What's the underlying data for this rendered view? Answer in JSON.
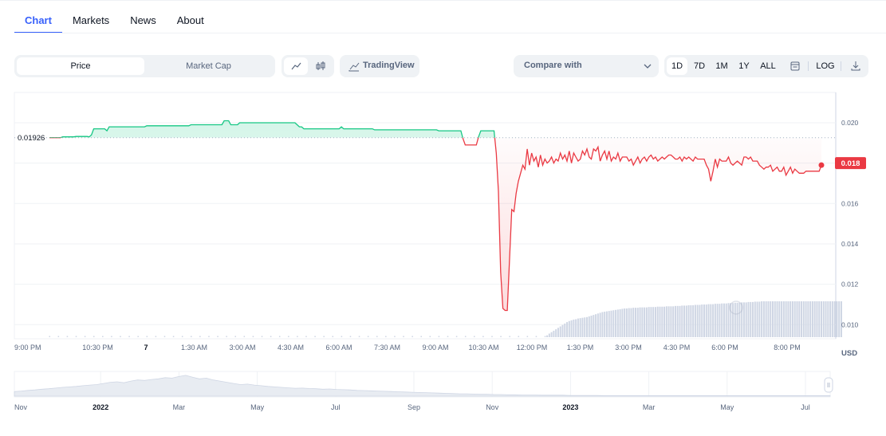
{
  "tabs": [
    {
      "label": "Chart",
      "active": true
    },
    {
      "label": "Markets",
      "active": false
    },
    {
      "label": "News",
      "active": false
    },
    {
      "label": "About",
      "active": false
    }
  ],
  "toolbar": {
    "metric_tabs": [
      {
        "label": "Price",
        "active": true
      },
      {
        "label": "Market Cap",
        "active": false
      }
    ],
    "chart_type_icons": [
      "line-chart-icon",
      "candlestick-icon"
    ],
    "tradingview_label": "TradingView",
    "compare_label": "Compare with",
    "ranges": [
      {
        "label": "1D",
        "active": true
      },
      {
        "label": "7D",
        "active": false
      },
      {
        "label": "1M",
        "active": false
      },
      {
        "label": "1Y",
        "active": false
      },
      {
        "label": "ALL",
        "active": false
      }
    ],
    "log_label": "LOG"
  },
  "colors": {
    "accent": "#3861fb",
    "up": "#16c784",
    "down": "#ea3943",
    "volume": "#cfd6e4",
    "text_muted": "#58667e",
    "grid": "#eff2f5"
  },
  "chart_data": [
    {
      "type": "line",
      "series": [
        {
          "values": [
            0.01926,
            0.01926,
            0.01926,
            0.01926,
            0.01926,
            0.01926,
            0.0193,
            0.0193,
            0.0193,
            0.0193,
            0.0193,
            0.0193,
            0.01932,
            0.01932,
            0.01932,
            0.01932,
            0.01932,
            0.01932,
            0.0193,
            0.0194,
            0.0197,
            0.0197,
            0.0197,
            0.0197,
            0.0197,
            0.0197,
            0.0196,
            0.0198,
            0.0198,
            0.0198,
            0.0198,
            0.0198,
            0.0198,
            0.0198,
            0.0198,
            0.0198,
            0.0198,
            0.0198,
            0.0198,
            0.0198,
            0.0198,
            0.0198,
            0.0198,
            0.0198,
            0.01985,
            0.01985,
            0.01985,
            0.01985,
            0.01985,
            0.01985,
            0.01985,
            0.01985,
            0.01985,
            0.01985,
            0.01985,
            0.01985,
            0.01985,
            0.01985,
            0.01985,
            0.01985,
            0.01985,
            0.01985,
            0.01985,
            0.01985,
            0.0199,
            0.0199,
            0.0199,
            0.0199,
            0.0199,
            0.0199,
            0.0199,
            0.0199,
            0.0199,
            0.0199,
            0.0199,
            0.0199,
            0.0199,
            0.0199,
            0.0199,
            0.0201,
            0.0201,
            0.0201,
            0.0199,
            0.0199,
            0.0199,
            0.0199,
            0.02,
            0.02,
            0.02,
            0.02,
            0.02,
            0.02,
            0.02,
            0.02,
            0.02,
            0.02,
            0.02,
            0.02,
            0.02,
            0.02,
            0.02,
            0.02,
            0.02,
            0.02,
            0.02,
            0.02,
            0.02,
            0.02,
            0.02,
            0.02,
            0.02,
            0.02,
            0.0199,
            0.0198,
            0.0198,
            0.0197,
            0.0197,
            0.0197,
            0.0197,
            0.0197,
            0.0197,
            0.0197,
            0.0197,
            0.0197,
            0.0197,
            0.0197,
            0.0197,
            0.0197,
            0.0197,
            0.0197,
            0.0197,
            0.0197,
            0.0198,
            0.0197,
            0.0197,
            0.0197,
            0.0197,
            0.0197,
            0.0197,
            0.0197,
            0.0197,
            0.0197,
            0.0197,
            0.0197,
            0.0197,
            0.0197,
            0.0197,
            0.01965,
            0.01965,
            0.01965,
            0.01965,
            0.01965,
            0.01965,
            0.01965,
            0.01965,
            0.01965,
            0.01965,
            0.01965,
            0.01965,
            0.01965,
            0.01965,
            0.01965,
            0.01965,
            0.01965,
            0.01965,
            0.01965,
            0.01965,
            0.01965,
            0.01965,
            0.01965,
            0.01965,
            0.01965,
            0.01965,
            0.01965,
            0.01965,
            0.01965,
            0.0196,
            0.0196,
            0.0196,
            0.0196,
            0.0196,
            0.0196,
            0.0196,
            0.0196,
            0.0196,
            0.0196,
            0.0196,
            0.0192,
            0.0189,
            0.0189,
            0.0189,
            0.0189,
            0.0189,
            0.0189,
            0.0193,
            0.0196,
            0.0196,
            0.0196,
            0.0196,
            0.0196,
            0.0196,
            0.0196,
            0.0185,
            0.0166,
            0.0126,
            0.0108,
            0.0107,
            0.0107,
            0.0132,
            0.0157,
            0.0156,
            0.0165,
            0.0171,
            0.0175,
            0.0179,
            0.0177,
            0.0187,
            0.0179,
            0.0185,
            0.0181,
            0.0183,
            0.0178,
            0.0184,
            0.0179,
            0.0182,
            0.018,
            0.0181,
            0.0183,
            0.018,
            0.0182,
            0.0181,
            0.0185,
            0.0182,
            0.0184,
            0.0181,
            0.0186,
            0.018,
            0.0185,
            0.0183,
            0.0181,
            0.0182,
            0.0186,
            0.0184,
            0.0187,
            0.0183,
            0.0182,
            0.0187,
            0.0186,
            0.0188,
            0.0181,
            0.0184,
            0.0186,
            0.0182,
            0.0186,
            0.0181,
            0.0183,
            0.0182,
            0.0185,
            0.0181,
            0.0183,
            0.0183,
            0.0183,
            0.0181,
            0.0182,
            0.0179,
            0.0181,
            0.0183,
            0.018,
            0.0182,
            0.0183,
            0.0181,
            0.0183,
            0.0184,
            0.0182,
            0.0183,
            0.0181,
            0.0182,
            0.0183,
            0.0182,
            0.0183,
            0.0184,
            0.0184,
            0.0183,
            0.0182,
            0.0182,
            0.0183,
            0.0181,
            0.0183,
            0.0182,
            0.0183,
            0.0182,
            0.0181,
            0.0183,
            0.0182,
            0.0182,
            0.0182,
            0.0182,
            0.0179,
            0.0177,
            0.0171,
            0.0176,
            0.0182,
            0.0178,
            0.0182,
            0.0181,
            0.0181,
            0.0181,
            0.0183,
            0.018,
            0.0179,
            0.018,
            0.0181,
            0.018,
            0.0179,
            0.0183,
            0.0183,
            0.0182,
            0.0183,
            0.0181,
            0.0181,
            0.0181,
            0.0179,
            0.0178,
            0.0177,
            0.0178,
            0.0178,
            0.0179,
            0.0176,
            0.0177,
            0.0178,
            0.0176,
            0.0176,
            0.0178,
            0.0174,
            0.0176,
            0.0178,
            0.0175,
            0.0177,
            0.0176,
            0.0175,
            0.0175,
            0.0175,
            0.0176,
            0.0176,
            0.0176,
            0.0176,
            0.0176,
            0.0176,
            0.0176,
            0.0179
          ]
        }
      ],
      "baseline": 0.01926,
      "baseline_label": "0.01926",
      "current_value_label": "0.018",
      "y_ticks": [
        "0.020",
        "0.018",
        "0.016",
        "0.014",
        "0.012",
        "0.010"
      ],
      "ylim": [
        0.0093,
        0.0215
      ],
      "x_ticks": [
        "9:00 PM",
        "10:30 PM",
        "7",
        "1:30 AM",
        "3:00 AM",
        "4:30 AM",
        "6:00 AM",
        "7:30 AM",
        "9:00 AM",
        "10:30 AM",
        "12:00 PM",
        "1:30 PM",
        "3:00 PM",
        "4:30 PM",
        "6:00 PM",
        "8:00 PM"
      ],
      "xlim": [
        0,
        360
      ],
      "x_tick_positions": [
        0,
        22.5,
        45,
        67.5,
        90,
        112.5,
        135,
        157.5,
        180,
        202.5,
        225,
        247.5,
        270,
        292.5,
        315,
        344
      ],
      "currency_label": "USD",
      "volume": {
        "start_index": 225,
        "values_relative": [
          0.05,
          0.1,
          0.14,
          0.18,
          0.22,
          0.26,
          0.3,
          0.34,
          0.38,
          0.42,
          0.45,
          0.47,
          0.49,
          0.5,
          0.52,
          0.53,
          0.54,
          0.55,
          0.56,
          0.58,
          0.6,
          0.62,
          0.64,
          0.66,
          0.68,
          0.7,
          0.71,
          0.72,
          0.73,
          0.74,
          0.75,
          0.76,
          0.77,
          0.78,
          0.79,
          0.8,
          0.8,
          0.81,
          0.81,
          0.82,
          0.82,
          0.82,
          0.83,
          0.83,
          0.83,
          0.83,
          0.84,
          0.84,
          0.84,
          0.84,
          0.85,
          0.85,
          0.85,
          0.85,
          0.86,
          0.86,
          0.86,
          0.86,
          0.87,
          0.87,
          0.87,
          0.88,
          0.88,
          0.88,
          0.89,
          0.89,
          0.89,
          0.9,
          0.9,
          0.9,
          0.91,
          0.91,
          0.91,
          0.92,
          0.92,
          0.92,
          0.93,
          0.93,
          0.93,
          0.94,
          0.94,
          0.94,
          0.95,
          0.95,
          0.95,
          0.96,
          0.96,
          0.96,
          0.97,
          0.97,
          0.97,
          0.98,
          0.98,
          0.98,
          0.99,
          0.99,
          0.99,
          1.0,
          1.0,
          1.0,
          1.0,
          1.0,
          1.0,
          1.0,
          1.0,
          1.0,
          1.0,
          1.0,
          1.0,
          1.0,
          1.0,
          1.0,
          1.0,
          1.0,
          1.0,
          1.0,
          1.0,
          1.0,
          1.0,
          1.0,
          1.0,
          1.0,
          1.0,
          1.0,
          1.0,
          1.0,
          1.0,
          1.0,
          1.0,
          1.0,
          1.0,
          1.0,
          1.0,
          1.0
        ]
      },
      "grid": true
    },
    {
      "type": "area",
      "role": "range-navigator",
      "values": [
        0.2,
        0.22,
        0.25,
        0.27,
        0.3,
        0.32,
        0.35,
        0.38,
        0.4,
        0.42,
        0.45,
        0.48,
        0.5,
        0.55,
        0.6,
        0.62,
        0.58,
        0.65,
        0.7,
        0.68,
        0.72,
        0.75,
        0.8,
        0.78,
        0.85,
        0.9,
        0.82,
        0.75,
        0.78,
        0.7,
        0.65,
        0.6,
        0.55,
        0.5,
        0.52,
        0.48,
        0.45,
        0.42,
        0.4,
        0.38,
        0.36,
        0.34,
        0.35,
        0.33,
        0.32,
        0.3,
        0.31,
        0.29,
        0.28,
        0.27,
        0.25,
        0.24,
        0.23,
        0.22,
        0.21,
        0.2,
        0.19,
        0.18,
        0.17,
        0.16,
        0.15,
        0.14,
        0.13,
        0.12,
        0.11,
        0.1,
        0.1,
        0.09,
        0.08,
        0.08,
        0.07,
        0.07,
        0.06,
        0.06,
        0.05,
        0.05,
        0.05,
        0.04,
        0.04,
        0.04,
        0.04,
        0.03,
        0.03,
        0.03,
        0.03,
        0.03,
        0.02,
        0.02,
        0.02,
        0.02,
        0.02,
        0.02,
        0.02,
        0.02,
        0.02,
        0.02,
        0.02,
        0.02,
        0.02,
        0.02,
        0.02,
        0.02,
        0.02,
        0.02,
        0.02,
        0.02,
        0.02,
        0.02,
        0.02,
        0.02,
        0.02,
        0.02,
        0.02,
        0.02,
        0.02,
        0.02,
        0.02,
        0.02,
        0.02,
        0.02
      ],
      "x_ticks": [
        "Nov",
        "2022",
        "Mar",
        "May",
        "Jul",
        "Sep",
        "Nov",
        "2023",
        "Mar",
        "May",
        "Jul"
      ],
      "bold_ticks": [
        "2022",
        "2023"
      ]
    }
  ]
}
